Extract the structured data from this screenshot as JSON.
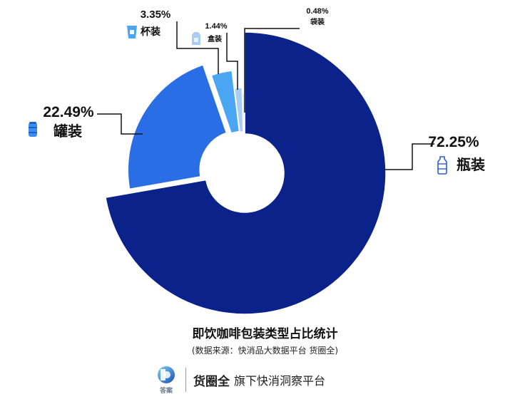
{
  "chart_data": {
    "type": "pie",
    "title": "即饮咖啡包装类型占比统计",
    "source": "(数据来源：快消品大数据平台 货圈全)",
    "slices": [
      {
        "label": "瓶装",
        "value": 72.25,
        "value_text": "72.25%",
        "color": "#0c228b",
        "icon": "bottle-icon"
      },
      {
        "label": "罐装",
        "value": 22.49,
        "value_text": "22.49%",
        "color": "#2a6ee6",
        "icon": "can-icon"
      },
      {
        "label": "杯装",
        "value": 3.35,
        "value_text": "3.35%",
        "color": "#4aa6f2",
        "icon": "cup-icon"
      },
      {
        "label": "盒装",
        "value": 1.44,
        "value_text": "1.44%",
        "color": "#a9cdf5",
        "icon": "box-icon"
      },
      {
        "label": "袋装",
        "value": 0.48,
        "value_text": "0.48%",
        "color": "#d9e6f7",
        "icon": "bag-icon"
      }
    ],
    "legend": "none",
    "colors": {
      "label_line": "#111111",
      "icon": "#4aa6f2"
    }
  },
  "footer": {
    "logo_text": "答案",
    "brand": "货圈全",
    "tagline": "旗下快消洞察平台"
  }
}
